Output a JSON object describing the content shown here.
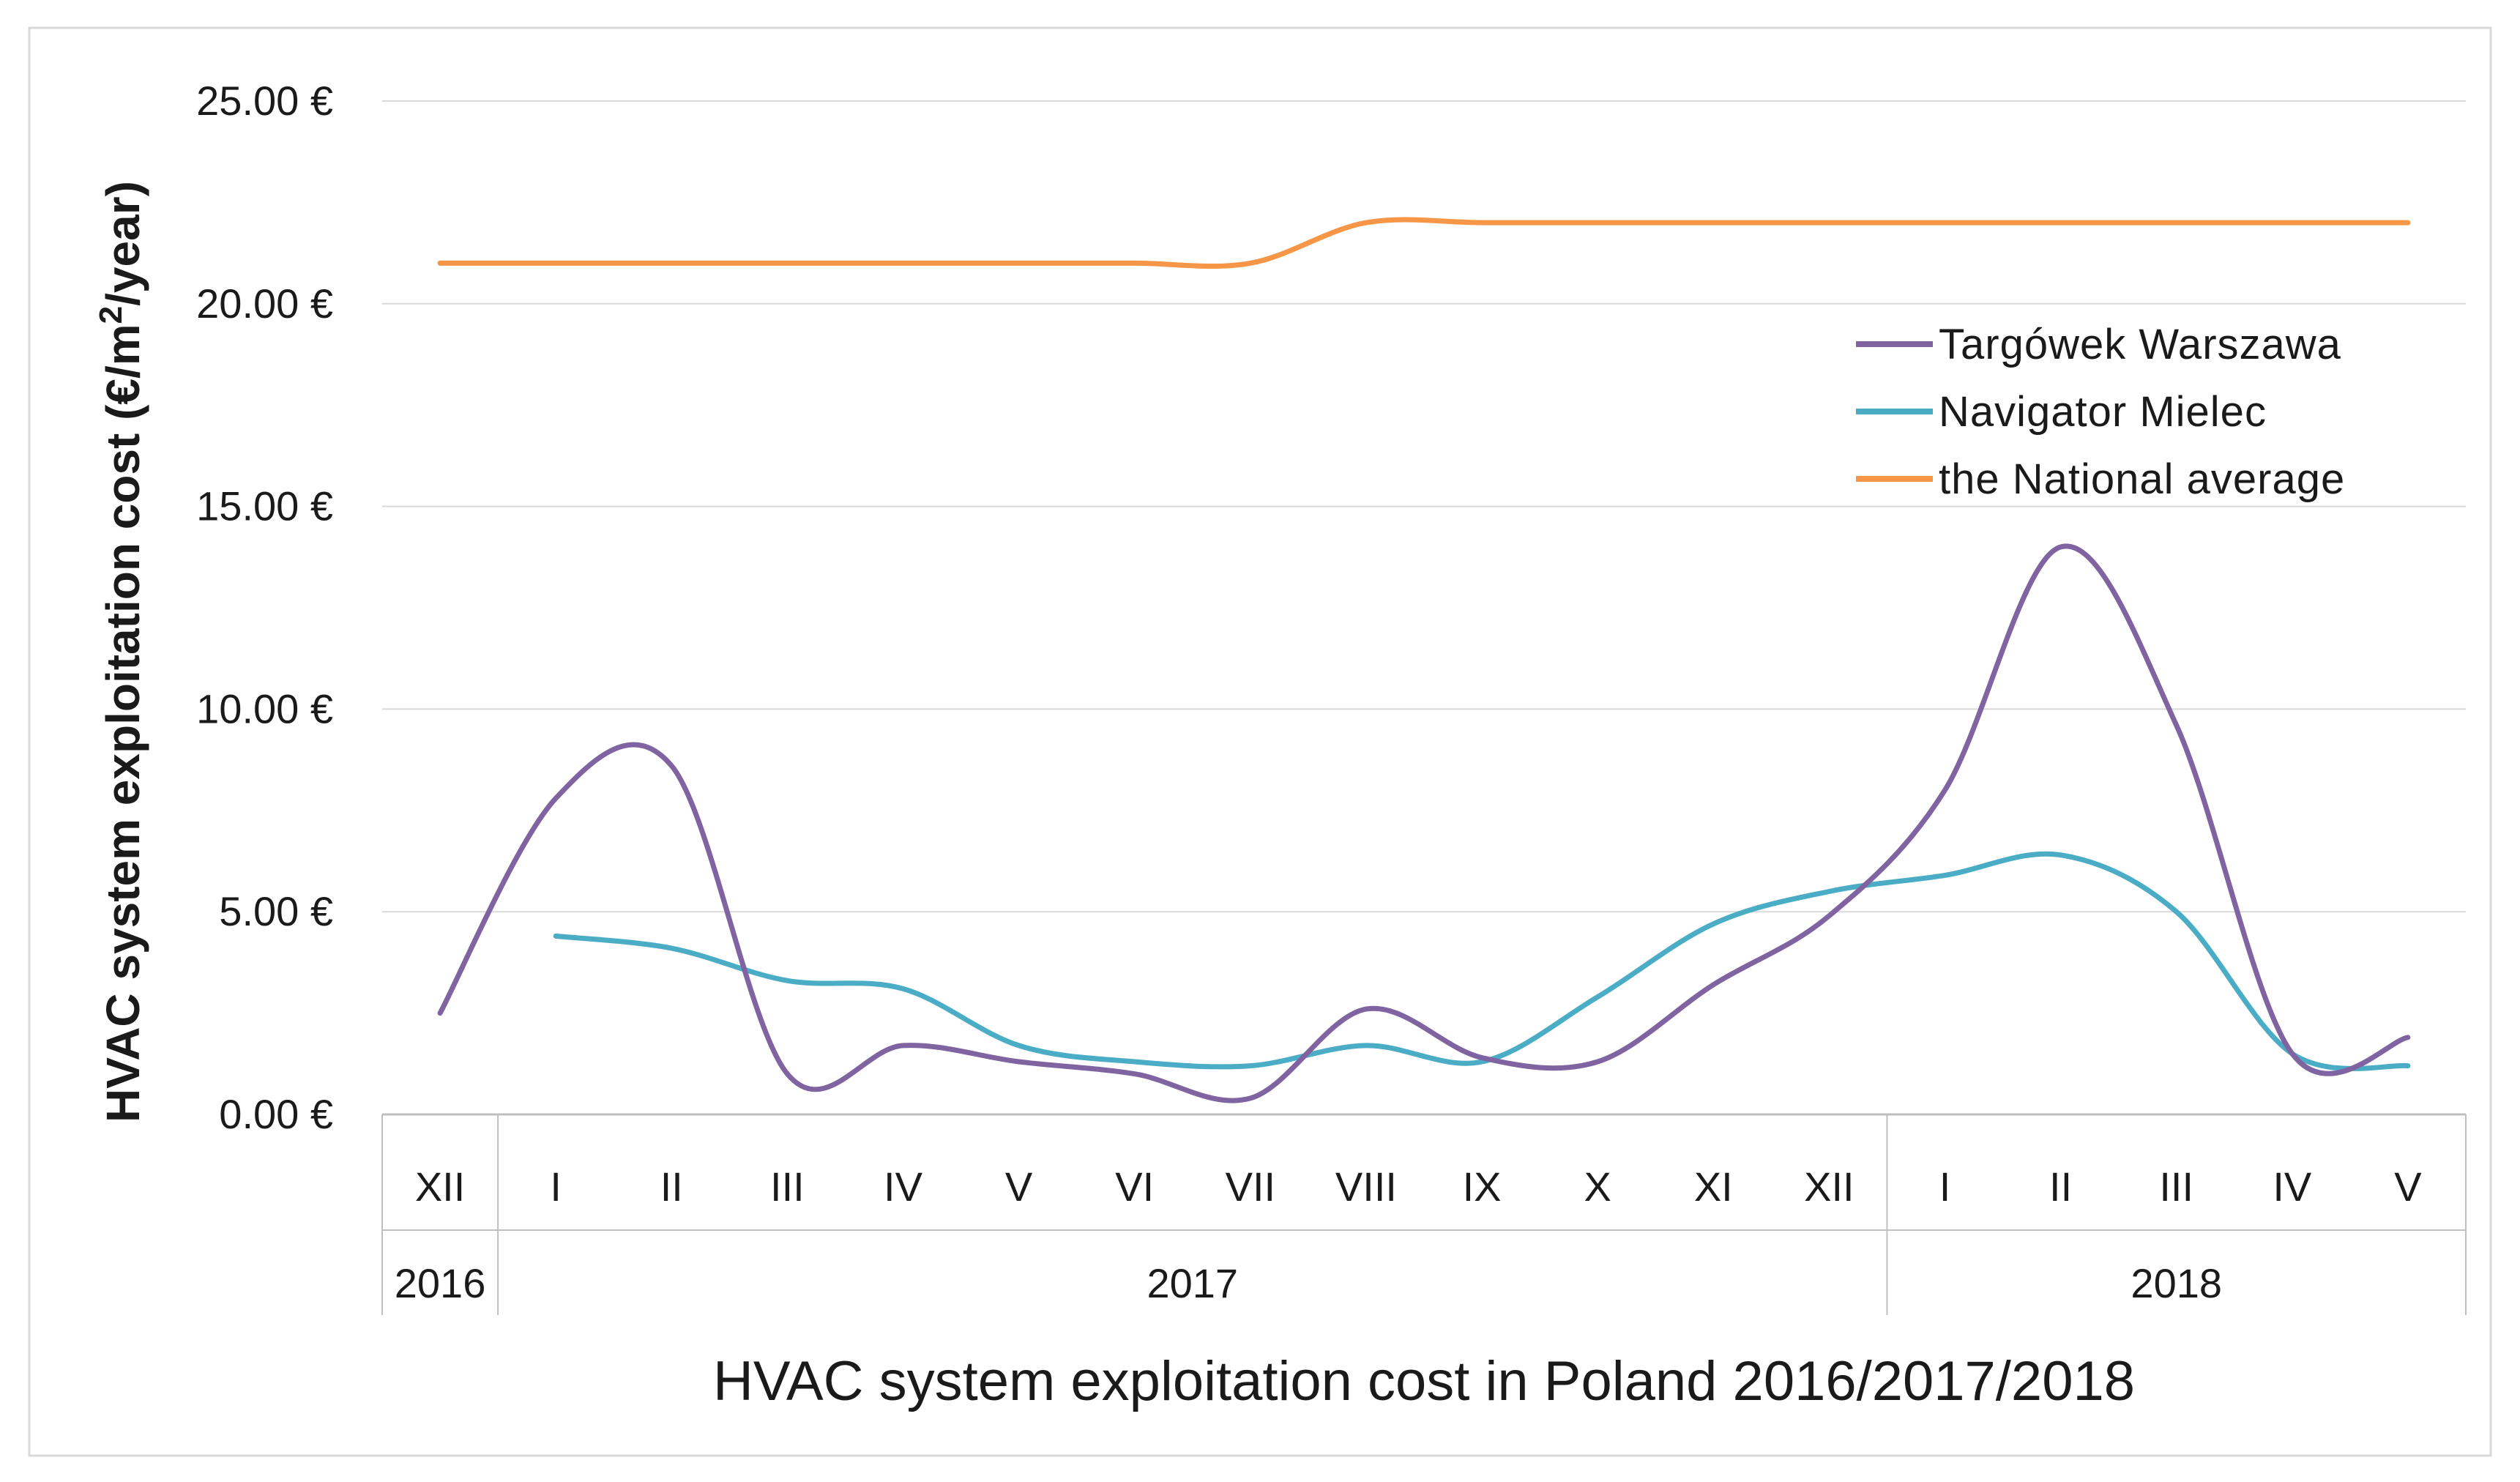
{
  "chart_data": {
    "type": "line",
    "title": "",
    "xlabel": "HVAC system exploitation cost in Poland 2016/2017/2018",
    "ylabel": "HVAC system exploitation cost (€/m²/year)",
    "ylabel_parts": {
      "before": "HVAC system exploitation cost (€/m",
      "sup": "2",
      "after": "/year)"
    },
    "ylim": [
      0,
      25
    ],
    "y_ticks": [
      0,
      5,
      10,
      15,
      20,
      25
    ],
    "y_tick_labels": [
      "0.00 €",
      "5.00 €",
      "10.00 €",
      "15.00 €",
      "20.00 €",
      "25.00 €"
    ],
    "grid": true,
    "categories": [
      "XII",
      "I",
      "II",
      "III",
      "IV",
      "V",
      "VI",
      "VII",
      "VIII",
      "IX",
      "X",
      "XI",
      "XII",
      "I",
      "II",
      "III",
      "IV",
      "V"
    ],
    "year_groups": [
      {
        "label": "2016",
        "start": 0,
        "end": 0
      },
      {
        "label": "2017",
        "start": 1,
        "end": 12
      },
      {
        "label": "2018",
        "start": 13,
        "end": 17
      }
    ],
    "legend_position": "right",
    "series": [
      {
        "name": "Targówek  Warszawa",
        "color": "#8064A2",
        "values": [
          2.5,
          7.8,
          8.6,
          1.0,
          1.7,
          1.3,
          1.0,
          0.4,
          2.6,
          1.4,
          1.3,
          3.2,
          4.9,
          8.0,
          14.0,
          9.6,
          1.5,
          1.9
        ]
      },
      {
        "name": "Navigator Mielec",
        "color": "#4BACC6",
        "values": [
          null,
          4.4,
          4.1,
          3.3,
          3.1,
          1.7,
          1.3,
          1.2,
          1.7,
          1.3,
          2.9,
          4.7,
          5.5,
          5.9,
          6.4,
          5.0,
          1.5,
          1.2
        ]
      },
      {
        "name": "the National average",
        "color": "#F79646",
        "values": [
          21,
          21,
          21,
          21,
          21,
          21,
          21,
          21,
          22,
          22,
          22,
          22,
          22,
          22,
          22,
          22,
          22,
          22
        ]
      }
    ]
  }
}
